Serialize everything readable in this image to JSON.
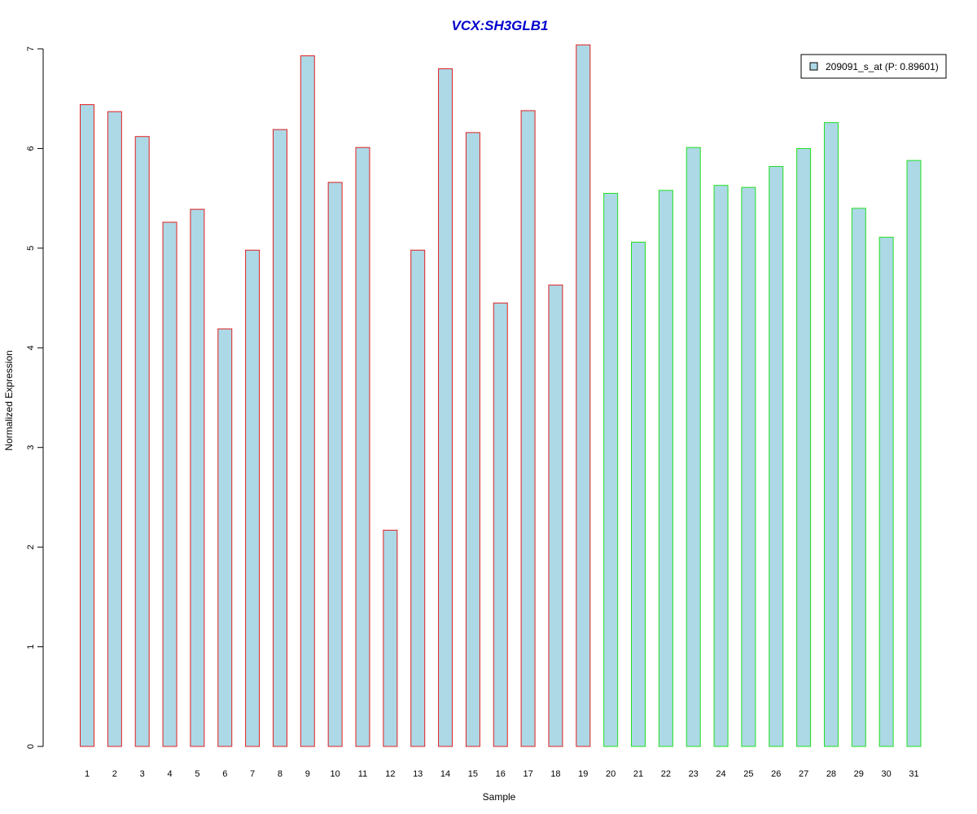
{
  "chart_data": {
    "type": "bar",
    "title": "VCX:SH3GLB1",
    "xlabel": "Sample",
    "ylabel": "Normalized Expression",
    "ylim": [
      0,
      7
    ],
    "yticks": [
      0,
      1,
      2,
      3,
      4,
      5,
      6,
      7
    ],
    "grid": false,
    "legend": {
      "placement": "top-right",
      "label": "209091_s_at (P: 0.89601)"
    },
    "categories": [
      "1",
      "2",
      "3",
      "4",
      "5",
      "6",
      "7",
      "8",
      "9",
      "10",
      "11",
      "12",
      "13",
      "14",
      "15",
      "16",
      "17",
      "18",
      "19",
      "20",
      "21",
      "22",
      "23",
      "24",
      "25",
      "26",
      "27",
      "28",
      "29",
      "30",
      "31"
    ],
    "series": [
      {
        "name": "209091_s_at (P: 0.89601)",
        "values": [
          6.44,
          6.37,
          6.12,
          5.26,
          5.39,
          4.19,
          4.98,
          6.19,
          6.93,
          5.66,
          6.01,
          2.17,
          4.98,
          6.8,
          6.16,
          4.45,
          6.38,
          4.63,
          7.04,
          5.55,
          5.06,
          5.58,
          6.01,
          5.63,
          5.61,
          5.82,
          6.0,
          6.26,
          5.4,
          5.11,
          5.88
        ]
      }
    ],
    "groups": [
      {
        "samples": [
          1,
          19
        ],
        "outline_color": "#e02020"
      },
      {
        "samples": [
          20,
          31
        ],
        "outline_color": "#20e020"
      }
    ],
    "colors": {
      "bar_fill": "#add8e6",
      "title": "#0000cc",
      "axis": "#000000"
    }
  }
}
